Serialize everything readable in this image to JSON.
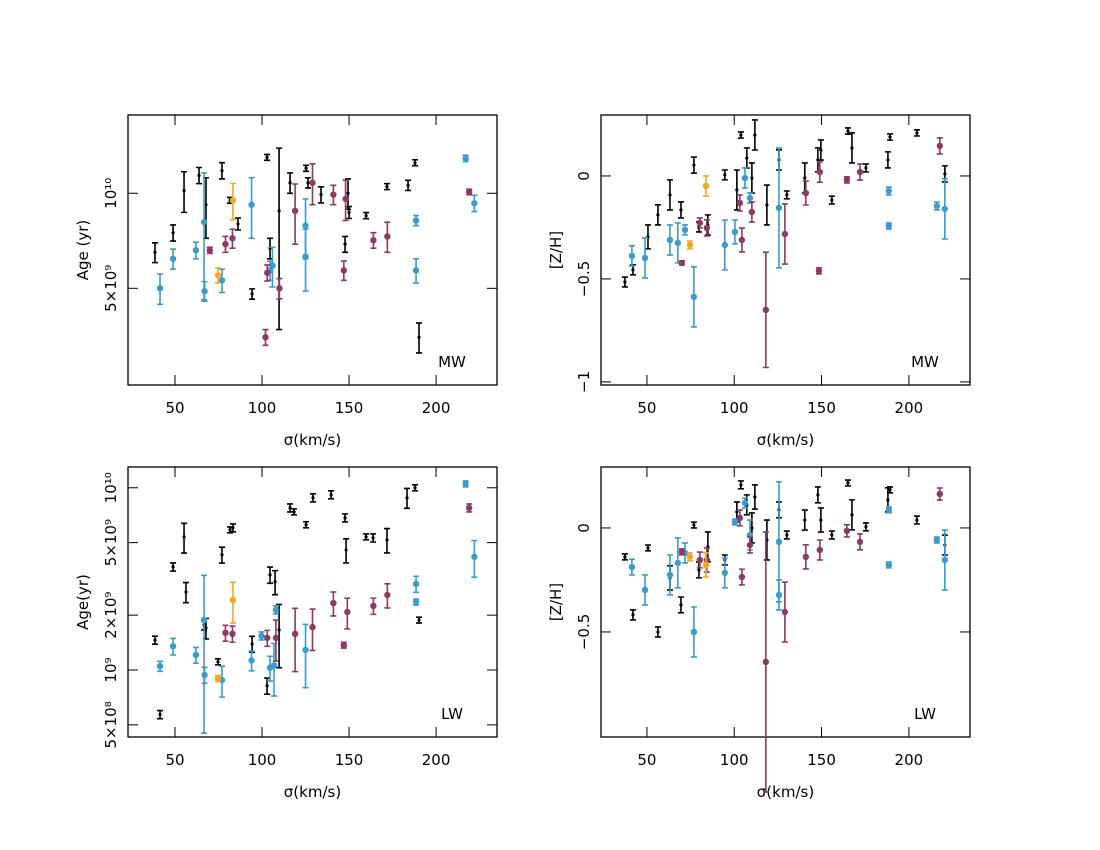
{
  "chart_data": [
    {
      "type": "scatter",
      "xlabel": "σ(km/s)",
      "ylabel": "Age (yr)",
      "annotation": "MW",
      "xlim": [
        23,
        235
      ],
      "xticks": [
        50,
        100,
        150,
        200
      ],
      "ylim": [
        2470000000.0,
        17700000000.0
      ],
      "ylog": true,
      "yticks": [
        {
          "value": 5000000000.0,
          "label": "5×10⁹"
        },
        {
          "value": 10000000000.0,
          "label": "10¹⁰"
        }
      ],
      "series": [
        {
          "color": "#000000",
          "x": [
            38.5,
            48.9,
            55.2,
            63.8,
            67.8,
            77,
            81.6,
            86.2,
            94.3,
            102.9,
            104.6,
            109.8,
            116.1,
            125.3,
            126.4,
            133.9,
            147.7,
            149.4,
            150,
            159.8,
            171.8,
            183.9,
            187.9,
            190.2
          ],
          "values": [
            6500000000.0,
            7500000000.0,
            10200000000.0,
            11400000000.0,
            9200000000.0,
            11800000000.0,
            9500000000.0,
            8000000000.0,
            4800000000.0,
            13000000000.0,
            6700000000.0,
            8800000000.0,
            10800000000.0,
            12000000000.0,
            10800000000.0,
            9900000000.0,
            6900000000.0,
            10000000000.0,
            8700000000.0,
            8500000000.0,
            10500000000.0,
            10600000000.0,
            12500000000.0,
            3500000000.0
          ],
          "errors": [
            470000000.0,
            440000000.0,
            1500000000.0,
            670000000.0,
            2000000000.0,
            700000000.0,
            200000000.0,
            350000000.0,
            180000000.0,
            280000000.0,
            500000000.0,
            5100000000.0,
            800000000.0,
            260000000.0,
            400000000.0,
            580000000.0,
            400000000.0,
            1100000000.0,
            380000000.0,
            190000000.0,
            230000000.0,
            390000000.0,
            270000000.0,
            380000000.0
          ]
        },
        {
          "color": "#3a9bcd",
          "x": [
            41.4,
            48.9,
            62,
            67,
            66.7,
            77,
            94,
            104.6,
            106,
            125,
            125,
            188.5,
            188.5,
            217,
            222
          ],
          "values": [
            5000000000.0,
            6200000000.0,
            6600000000.0,
            4900000000.0,
            8100000000.0,
            5300000000.0,
            9200000000.0,
            5700000000.0,
            5900000000.0,
            6300000000.0,
            7900000000.0,
            5700000000.0,
            8200000000.0,
            12900000000.0,
            9300000000.0
          ],
          "errors": [
            550000000.0,
            450000000.0,
            400000000.0,
            350000000.0,
            3500000000.0,
            450000000.0,
            2000000000.0,
            400000000.0,
            850000000.0,
            1400000000.0,
            1700000000.0,
            500000000.0,
            300000000.0,
            300000000.0,
            550000000.0
          ]
        },
        {
          "color": "#8b3a62",
          "x": [
            70,
            79,
            83,
            103,
            102,
            110,
            119,
            129,
            141,
            147,
            148,
            164,
            172,
            219
          ],
          "values": [
            6600000000.0,
            6900000000.0,
            7200000000.0,
            5600000000.0,
            3500000000.0,
            5000000000.0,
            8800000000.0,
            10800000000.0,
            9900000000.0,
            5700000000.0,
            9600000000.0,
            7100000000.0,
            7300000000.0,
            10100000000.0
          ],
          "errors": [
            150000000.0,
            400000000.0,
            500000000.0,
            330000000.0,
            200000000.0,
            370000000.0,
            1900000000.0,
            1600000000.0,
            700000000.0,
            400000000.0,
            1400000000.0,
            400000000.0,
            800000000.0,
            200000000.0
          ]
        },
        {
          "color": "#f5a623",
          "x": [
            74.7,
            83.3
          ],
          "values": [
            5500000000.0,
            9500000000.0
          ],
          "errors": [
            300000000.0,
            1250000000.0
          ]
        }
      ]
    },
    {
      "type": "scatter",
      "xlabel": "σ(km/s)",
      "ylabel": "[Z/H]",
      "annotation": "MW",
      "xlim": [
        23.7,
        235
      ],
      "xticks": [
        50,
        100,
        150,
        200
      ],
      "ylim": [
        -1.015,
        0.296
      ],
      "yticks": [
        {
          "value": -1,
          "label": "−1"
        },
        {
          "value": -0.5,
          "label": "−0.5"
        },
        0
      ],
      "series": [
        {
          "color": "#000000",
          "x": [
            37.4,
            42,
            50.6,
            56.3,
            63.2,
            69.5,
            76.9,
            79.8,
            84.9,
            94.6,
            101.5,
            103.8,
            107.2,
            110.1,
            111.8,
            118.7,
            125.6,
            130.1,
            140.4,
            147.9,
            149.6,
            155.9,
            165.1,
            167.4,
            175.4,
            188,
            189.2,
            204.6,
            220.6
          ],
          "values": [
            -0.515,
            -0.456,
            -0.296,
            -0.189,
            -0.092,
            -0.165,
            0.053,
            -0.248,
            -0.238,
            0.005,
            -0.068,
            0.199,
            0.087,
            -0.01,
            0.199,
            -0.141,
            0.078,
            -0.092,
            -0.01,
            0.078,
            0.126,
            -0.117,
            0.218,
            0.136,
            0.039,
            0.078,
            0.189,
            0.209,
            0.01
          ],
          "errors": [
            0.024,
            0.024,
            0.058,
            0.049,
            0.073,
            0.039,
            0.039,
            0.024,
            0.049,
            0.024,
            0.097,
            0.015,
            0.049,
            0.073,
            0.073,
            0.097,
            0.049,
            0.019,
            0.073,
            0.058,
            0.049,
            0.019,
            0.015,
            0.073,
            0.019,
            0.039,
            0.015,
            0.015,
            0.039
          ]
        },
        {
          "color": "#3a9bcd",
          "x": [
            41.4,
            48.9,
            63.2,
            67.7,
            71.8,
            76.9,
            94.6,
            100.4,
            106.1,
            109,
            125.6,
            188.5,
            188.5,
            216,
            220.6
          ],
          "values": [
            -0.388,
            -0.398,
            -0.311,
            -0.325,
            -0.262,
            -0.587,
            -0.335,
            -0.272,
            -0.01,
            -0.107,
            -0.155,
            -0.073,
            -0.243,
            -0.146,
            -0.16
          ],
          "errors": [
            0.049,
            0.097,
            0.073,
            0.097,
            0.024,
            0.146,
            0.121,
            0.058,
            0.049,
            0.024,
            0.291,
            0.019,
            0.015,
            0.019,
            0.146
          ]
        },
        {
          "color": "#8b3a62",
          "x": [
            70,
            80.3,
            84.3,
            103.2,
            104.4,
            110.1,
            118.1,
            129,
            141,
            148.5,
            149,
            164.5,
            172,
            217.7
          ],
          "values": [
            -0.422,
            -0.228,
            -0.252,
            -0.131,
            -0.311,
            -0.175,
            -0.65,
            -0.282,
            -0.083,
            -0.461,
            0.019,
            -0.019,
            0.019,
            0.146
          ],
          "errors": [
            0.01,
            0.024,
            0.039,
            0.039,
            0.058,
            0.049,
            0.28,
            0.146,
            0.058,
            0.015,
            0.049,
            0.015,
            0.039,
            0.039
          ]
        },
        {
          "color": "#f5a623",
          "x": [
            74.6,
            83.8
          ],
          "values": [
            -0.335,
            -0.049
          ],
          "errors": [
            0.019,
            0.049
          ]
        }
      ]
    },
    {
      "type": "scatter",
      "xlabel": "σ(km/s)",
      "ylabel": "Age(yr)",
      "annotation": "LW",
      "xlim": [
        23,
        235
      ],
      "xticks": [
        50,
        100,
        150,
        200
      ],
      "ylim": [
        429000000.0,
        13000000000.0
      ],
      "ylog": true,
      "yticks": [
        {
          "value": 500000000.0,
          "label": "5×10⁸"
        },
        {
          "value": 1000000000.0,
          "label": "10⁹"
        },
        {
          "value": 2000000000.0,
          "label": "2×10⁹"
        },
        {
          "value": 5000000000.0,
          "label": "5×10⁹"
        },
        {
          "value": 10000000000.0,
          "label": "10¹⁰"
        }
      ],
      "series": [
        {
          "color": "#000000",
          "x": [
            38.5,
            41.4,
            48.9,
            55.2,
            56.3,
            66.7,
            67.8,
            77,
            81.6,
            83.3,
            74.7,
            94.3,
            102.9,
            104.6,
            107.5,
            109.8,
            116.1,
            118.4,
            125.3,
            129.3,
            139.7,
            147.7,
            148.3,
            159.8,
            163.8,
            171.8,
            183.3,
            187.9,
            190.2
          ],
          "values": [
            1460000000.0,
            570000000.0,
            3680000000.0,
            5380000000.0,
            2680000000.0,
            1770000000.0,
            1700000000.0,
            4290000000.0,
            5880000000.0,
            6030000000.0,
            1110000000.0,
            1390000000.0,
            820000000.0,
            3330000000.0,
            3050000000.0,
            1660000000.0,
            7760000000.0,
            7380000000.0,
            6270000000.0,
            8810000000.0,
            9160000000.0,
            6840000000.0,
            4560000000.0,
            5380000000.0,
            5310000000.0,
            5180000000.0,
            8810000000.0,
            10000000000.0,
            1880000000.0
          ],
          "errors": [
            74000000.0,
            29000000.0,
            190000000.0,
            1000000000.0,
            340000000.0,
            110000000.0,
            220000000.0,
            430000000.0,
            220000000.0,
            300000000.0,
            42000000.0,
            140000000.0,
            83000000.0,
            340000000.0,
            460000000.0,
            630000000.0,
            390000000.0,
            280000000.0,
            240000000.0,
            450000000.0,
            460000000.0,
            350000000.0,
            690000000.0,
            200000000.0,
            270000000.0,
            790000000.0,
            1100000000.0,
            380000000.0,
            70000000.0
          ]
        },
        {
          "color": "#3a9bcd",
          "x": [
            41.4,
            48.9,
            62,
            67,
            66.7,
            77,
            94,
            99.7,
            104.6,
            106.9,
            108,
            125,
            188.5,
            188.5,
            217,
            222
          ],
          "values": [
            1050000000.0,
            1350000000.0,
            1210000000.0,
            940000000.0,
            1880000000.0,
            880000000.0,
            1130000000.0,
            1540000000.0,
            1030000000.0,
            1060000000.0,
            2140000000.0,
            1290000000.0,
            2970000000.0,
            2360000000.0,
            10500000000.0,
            4180000000.0
          ],
          "errors": [
            66000000.0,
            140000000.0,
            120000000.0,
            95000000.0,
            1430000000.0,
            170000000.0,
            140000000.0,
            78000000.0,
            160000000.0,
            340000000.0,
            110000000.0,
            490000000.0,
            300000000.0,
            90000000.0,
            400000000.0,
            950000000.0
          ]
        },
        {
          "color": "#8b3a62",
          "x": [
            79,
            83,
            103,
            108,
            119,
            129,
            141,
            147,
            149,
            164,
            172,
            219
          ],
          "values": [
            1600000000.0,
            1580000000.0,
            1500000000.0,
            1500000000.0,
            1580000000.0,
            1720000000.0,
            2330000000.0,
            1370000000.0,
            2080000000.0,
            2250000000.0,
            2580000000.0,
            7760000000.0
          ],
          "errors": [
            160000000.0,
            160000000.0,
            150000000.0,
            380000000.0,
            600000000.0,
            440000000.0,
            350000000.0,
            50000000.0,
            400000000.0,
            230000000.0,
            390000000.0,
            390000000.0
          ]
        },
        {
          "color": "#f5a623",
          "x": [
            74.7,
            83.3
          ],
          "values": [
            900000000.0,
            2420000000.0
          ],
          "errors": [
            34000000.0,
            610000000.0
          ]
        }
      ]
    },
    {
      "type": "scatter",
      "xlabel": "σ(km/s)",
      "ylabel": "[Z/H]",
      "annotation": "LW",
      "xlim": [
        23.7,
        235
      ],
      "xticks": [
        50,
        100,
        150,
        200
      ],
      "ylim": [
        -1.005,
        0.293
      ],
      "yticks": [
        {
          "value": -0.5,
          "label": "−0.5"
        },
        0
      ],
      "series": [
        {
          "color": "#000000",
          "x": [
            37.4,
            42,
            50.6,
            56.3,
            63.2,
            69.5,
            76.9,
            79.8,
            84.9,
            94.6,
            101.5,
            103.8,
            107.2,
            110.1,
            111.8,
            118.7,
            125.6,
            130.1,
            140.4,
            147.9,
            149.6,
            155.9,
            165.1,
            167.4,
            175.4,
            188,
            189.2,
            204.6,
            220.6
          ],
          "values": [
            -0.139,
            -0.418,
            -0.096,
            -0.5,
            -0.24,
            -0.37,
            0.014,
            -0.202,
            -0.091,
            -0.154,
            0.077,
            0.207,
            0.111,
            0,
            0.149,
            -0.058,
            0.087,
            -0.034,
            0.038,
            0.159,
            0.038,
            -0.034,
            0.216,
            0.063,
            0.005,
            0.135,
            0.183,
            0.038,
            -0.082
          ],
          "errors": [
            0.014,
            0.024,
            0.014,
            0.024,
            0.058,
            0.038,
            0.014,
            0.038,
            0.072,
            0.024,
            0.048,
            0.019,
            0.048,
            0.072,
            0.058,
            0.096,
            0.038,
            0.019,
            0.048,
            0.038,
            0.058,
            0.019,
            0.014,
            0.072,
            0.019,
            0.058,
            0.014,
            0.019,
            0.048
          ]
        },
        {
          "color": "#3a9bcd",
          "x": [
            41.4,
            48.9,
            63.2,
            67.7,
            71.8,
            76.9,
            94.6,
            100.4,
            106.1,
            109,
            125.6,
            125.6,
            188.5,
            188.5,
            216,
            220.6
          ],
          "values": [
            -0.188,
            -0.298,
            -0.226,
            -0.168,
            -0.12,
            -0.5,
            -0.216,
            0.029,
            0.12,
            -0.034,
            -0.067,
            -0.322,
            0.087,
            -0.178,
            -0.058,
            -0.154
          ],
          "errors": [
            0.038,
            0.072,
            0.096,
            0.12,
            0.048,
            0.12,
            0.072,
            0.014,
            0.024,
            0.072,
            0.288,
            0.072,
            0.014,
            0.014,
            0.014,
            0.144
          ]
        },
        {
          "color": "#8b3a62",
          "x": [
            70,
            80.3,
            84.3,
            103.2,
            104.4,
            109,
            118.1,
            129,
            141,
            149,
            164.5,
            172,
            217.7
          ],
          "values": [
            -0.115,
            -0.154,
            -0.154,
            0.048,
            -0.236,
            -0.082,
            -0.644,
            -0.404,
            -0.139,
            -0.106,
            -0.014,
            -0.067,
            0.163
          ],
          "errors": [
            0.014,
            0.038,
            0.058,
            0.038,
            0.038,
            0.038,
            0.625,
            0.144,
            0.058,
            0.048,
            0.029,
            0.038,
            0.029
          ]
        },
        {
          "color": "#f5a623",
          "x": [
            74.6,
            83.8
          ],
          "values": [
            -0.139,
            -0.178
          ],
          "errors": [
            0.019,
            0.058
          ]
        }
      ]
    }
  ]
}
